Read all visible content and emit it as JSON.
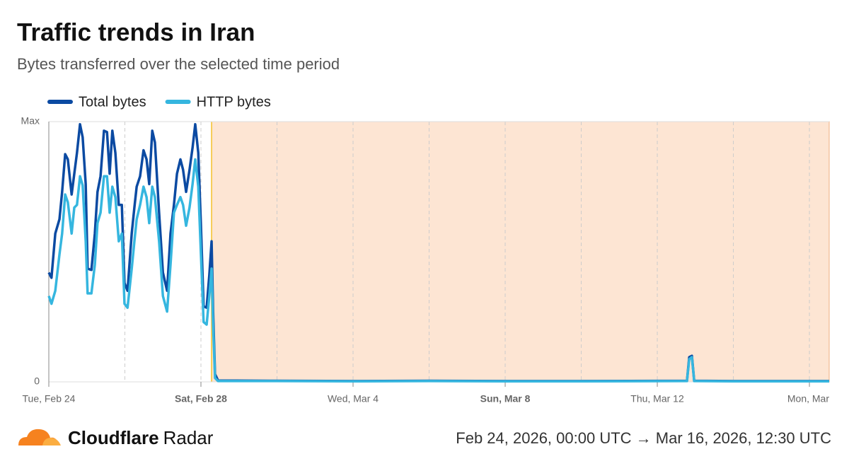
{
  "chart_data": {
    "type": "line",
    "title": "Traffic trends in Iran",
    "subtitle": "Bytes transferred over the selected time period",
    "x": [
      0,
      0.07,
      0.17,
      0.28,
      0.35,
      0.43,
      0.5,
      0.6,
      0.67,
      0.74,
      0.82,
      0.89,
      0.97,
      1.02,
      1.12,
      1.21,
      1.28,
      1.36,
      1.45,
      1.53,
      1.6,
      1.67,
      1.75,
      1.84,
      1.92,
      1.99,
      2.07,
      2.18,
      2.25,
      2.31,
      2.4,
      2.49,
      2.57,
      2.64,
      2.72,
      2.79,
      2.9,
      3.0,
      3.11,
      3.2,
      3.29,
      3.37,
      3.46,
      3.53,
      3.61,
      3.7,
      3.78,
      3.85,
      3.93,
      4.0,
      4.07,
      4.15,
      4.22,
      4.28,
      4.32,
      4.37,
      4.45,
      6,
      8,
      10,
      12,
      14,
      16.78,
      16.84,
      16.91,
      16.97,
      18,
      20.52
    ],
    "series": [
      {
        "name": "Total bytes",
        "color": "#0b4aa2",
        "values": [
          0.42,
          0.4,
          0.57,
          0.625,
          0.73,
          0.875,
          0.855,
          0.72,
          0.8,
          0.88,
          0.99,
          0.94,
          0.76,
          0.435,
          0.43,
          0.57,
          0.73,
          0.79,
          0.965,
          0.96,
          0.8,
          0.965,
          0.88,
          0.68,
          0.68,
          0.38,
          0.35,
          0.57,
          0.67,
          0.75,
          0.79,
          0.89,
          0.855,
          0.76,
          0.965,
          0.92,
          0.65,
          0.42,
          0.35,
          0.57,
          0.68,
          0.8,
          0.855,
          0.815,
          0.73,
          0.815,
          0.9,
          0.99,
          0.88,
          0.6,
          0.29,
          0.285,
          0.41,
          0.54,
          0.27,
          0.03,
          0.005,
          0.004,
          0.003,
          0.004,
          0.003,
          0.003,
          0.004,
          0.095,
          0.1,
          0.004,
          0.003,
          0.003
        ]
      },
      {
        "name": "HTTP bytes",
        "color": "#35b6df",
        "values": [
          0.33,
          0.3,
          0.35,
          0.49,
          0.57,
          0.72,
          0.69,
          0.57,
          0.67,
          0.68,
          0.79,
          0.755,
          0.54,
          0.34,
          0.34,
          0.45,
          0.61,
          0.65,
          0.79,
          0.79,
          0.65,
          0.75,
          0.71,
          0.54,
          0.57,
          0.3,
          0.285,
          0.435,
          0.54,
          0.625,
          0.68,
          0.75,
          0.71,
          0.61,
          0.75,
          0.71,
          0.54,
          0.33,
          0.27,
          0.45,
          0.65,
          0.68,
          0.71,
          0.68,
          0.6,
          0.67,
          0.76,
          0.855,
          0.75,
          0.49,
          0.23,
          0.22,
          0.33,
          0.435,
          0.22,
          0.015,
          0.003,
          0.003,
          0.002,
          0.003,
          0.002,
          0.002,
          0.003,
          0.087,
          0.095,
          0.003,
          0.002,
          0.002
        ]
      }
    ],
    "xlim": [
      0,
      20.52
    ],
    "xticks": [
      {
        "value": 0,
        "label": "Tue, Feb 24"
      },
      {
        "value": 4,
        "label": "Sat, Feb 28",
        "bold": true
      },
      {
        "value": 8,
        "label": "Wed, Mar 4"
      },
      {
        "value": 12,
        "label": "Sun, Mar 8",
        "bold": true
      },
      {
        "value": 16,
        "label": "Thu, Mar 12"
      },
      {
        "value": 20,
        "label": "Mon, Mar"
      }
    ],
    "xgrid": [
      2,
      4,
      6,
      8,
      10,
      12,
      14,
      16,
      18,
      20
    ],
    "ylim": [
      0,
      1
    ],
    "yticks": [
      0,
      {
        "value": 1,
        "label": "Max"
      }
    ],
    "highlight": {
      "from": 4.28,
      "to": 20.52,
      "color": "#fde5d3",
      "edge": "#f6cc55"
    }
  },
  "footer": {
    "brand": "Cloudflare",
    "product": "Radar",
    "period": "Feb 24, 2026, 00:00 UTC → Mar 16, 2026, 12:30 UTC"
  }
}
